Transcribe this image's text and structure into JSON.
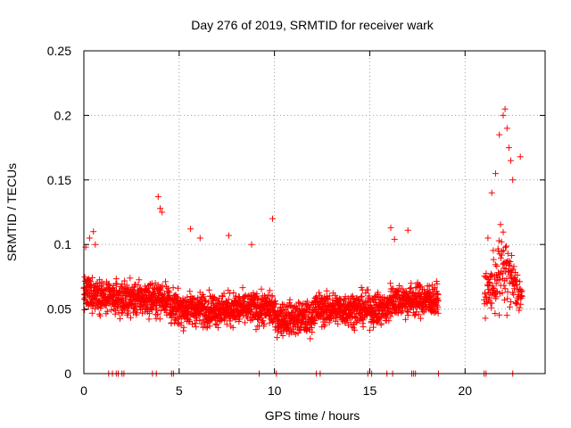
{
  "chart_data": {
    "type": "scatter",
    "title": "Day 276 of 2019, SRMTID for receiver wark",
    "xlabel": "GPS time / hours",
    "ylabel": "SRMTID / TECUs",
    "xlim": [
      0,
      24.2
    ],
    "ylim": [
      0,
      0.25
    ],
    "xticks": [
      0,
      5,
      10,
      15,
      20
    ],
    "yticks": [
      0,
      0.05,
      0.1,
      0.15,
      0.2,
      0.25
    ],
    "xtick_labels": [
      "0",
      "5",
      "10",
      "15",
      "20"
    ],
    "ytick_labels": [
      "0",
      "0.05",
      "0.1",
      "0.15",
      "0.2",
      "0.25"
    ],
    "grid": true,
    "marker": "plus",
    "color": "#ff0000",
    "series": [
      {
        "name": "SRMTID",
        "segments": [
          {
            "x_start": 0.0,
            "x_end": 18.6,
            "baseline": 0.05,
            "spread": 0.022
          },
          {
            "x_start": 21.0,
            "x_end": 23.0,
            "baseline": 0.06,
            "spread": 0.03
          }
        ],
        "x": [
          0.1,
          0.3,
          0.5,
          0.6,
          3.9,
          4.0,
          4.1,
          9.9,
          7.6,
          8.8,
          5.6,
          6.1,
          16.1,
          16.3,
          17.0,
          21.8,
          22.0,
          22.1,
          22.2,
          22.3,
          22.4,
          22.5,
          22.9,
          21.6,
          21.4,
          21.2
        ],
        "y": [
          0.098,
          0.105,
          0.11,
          0.1,
          0.137,
          0.128,
          0.125,
          0.12,
          0.107,
          0.1,
          0.112,
          0.105,
          0.113,
          0.104,
          0.111,
          0.185,
          0.2,
          0.205,
          0.19,
          0.175,
          0.165,
          0.15,
          0.168,
          0.155,
          0.14,
          0.105
        ],
        "zero_x": [
          1.3,
          1.5,
          1.7,
          1.8,
          2.0,
          2.1,
          3.6,
          3.8,
          4.6,
          4.7,
          9.2,
          10.1,
          12.2,
          12.4,
          14.9,
          15.1,
          15.9,
          16.2,
          17.2,
          17.3,
          17.4,
          18.6,
          21.0,
          21.1,
          22.5
        ]
      }
    ]
  }
}
